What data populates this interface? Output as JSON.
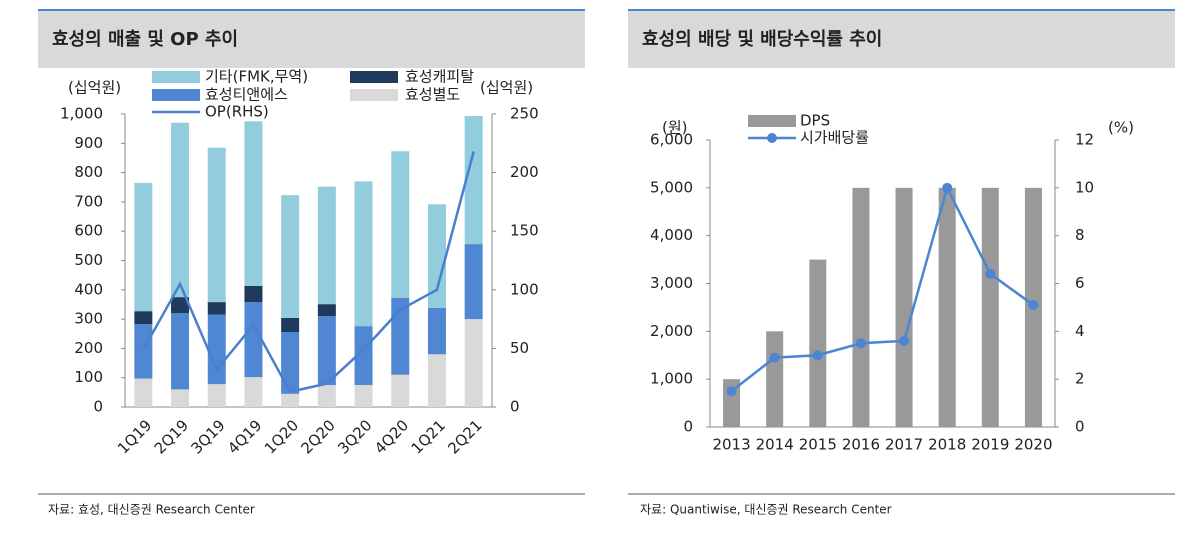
{
  "chart_data": [
    {
      "type": "bar",
      "stacked": true,
      "title": "효성의 매출 및 OP 추이",
      "y_unit": "(십억원)",
      "y2_unit": "(십억원)",
      "categories": [
        "1Q19",
        "2Q19",
        "3Q19",
        "4Q19",
        "1Q20",
        "2Q20",
        "3Q20",
        "4Q20",
        "1Q21",
        "2Q21"
      ],
      "series": [
        {
          "name": "효성별도",
          "color": "#d9d9d9",
          "values": [
            97,
            60,
            78,
            102,
            45,
            75,
            75,
            110,
            180,
            300
          ]
        },
        {
          "name": "효성티앤에스",
          "color": "#4f87d3",
          "values": [
            186,
            260,
            237,
            256,
            211,
            235,
            201,
            262,
            158,
            256
          ]
        },
        {
          "name": "효성캐피탈",
          "color": "#1f3a5c",
          "values": [
            44,
            55,
            43,
            55,
            48,
            41,
            0,
            0,
            0,
            0
          ]
        },
        {
          "name": "기타(FMK,무역)",
          "color": "#93cddd",
          "values": [
            438,
            595,
            527,
            562,
            419,
            401,
            494,
            501,
            354,
            437
          ]
        },
        {
          "name": "OP(RHS)",
          "type": "line",
          "axis": "y2",
          "color": "#4a7fcf",
          "values": [
            49,
            105,
            32,
            70,
            13,
            20,
            49,
            83,
            100,
            218
          ]
        }
      ],
      "ylim": [
        0,
        1000
      ],
      "yticks": [
        0,
        100,
        200,
        300,
        400,
        500,
        600,
        700,
        800,
        900,
        {
          "value": 1000,
          "label": "1,000"
        }
      ],
      "y2lim": [
        0,
        250
      ],
      "y2ticks": [
        0,
        50,
        100,
        150,
        200,
        250
      ],
      "source": "자료: 효성, 대신증권 Research Center"
    },
    {
      "type": "bar",
      "title": "효성의 배당 및 배당수익률 추이",
      "y_unit": "(원)",
      "y2_unit": "(%)",
      "categories": [
        "2013",
        "2014",
        "2015",
        "2016",
        "2017",
        "2018",
        "2019",
        "2020"
      ],
      "series": [
        {
          "name": "DPS",
          "color": "#999999",
          "values": [
            1000,
            2000,
            3500,
            5000,
            5000,
            5000,
            5000,
            5000
          ]
        },
        {
          "name": "시가배당률",
          "type": "line",
          "axis": "y2",
          "markers": true,
          "color": "#4a86d4",
          "values": [
            1.5,
            2.9,
            3.0,
            3.5,
            3.6,
            10.0,
            6.4,
            5.1
          ]
        }
      ],
      "ylim": [
        0,
        6000
      ],
      "yticks": [
        0,
        {
          "value": 1000,
          "label": "1,000"
        },
        {
          "value": 2000,
          "label": "2,000"
        },
        {
          "value": 3000,
          "label": "3,000"
        },
        {
          "value": 4000,
          "label": "4,000"
        },
        {
          "value": 5000,
          "label": "5,000"
        },
        {
          "value": 6000,
          "label": "6,000"
        }
      ],
      "y2lim": [
        0,
        12
      ],
      "y2ticks": [
        0,
        2,
        4,
        6,
        8,
        10,
        12
      ],
      "source": "자료: Quantiwise, 대신증권 Research Center"
    }
  ]
}
